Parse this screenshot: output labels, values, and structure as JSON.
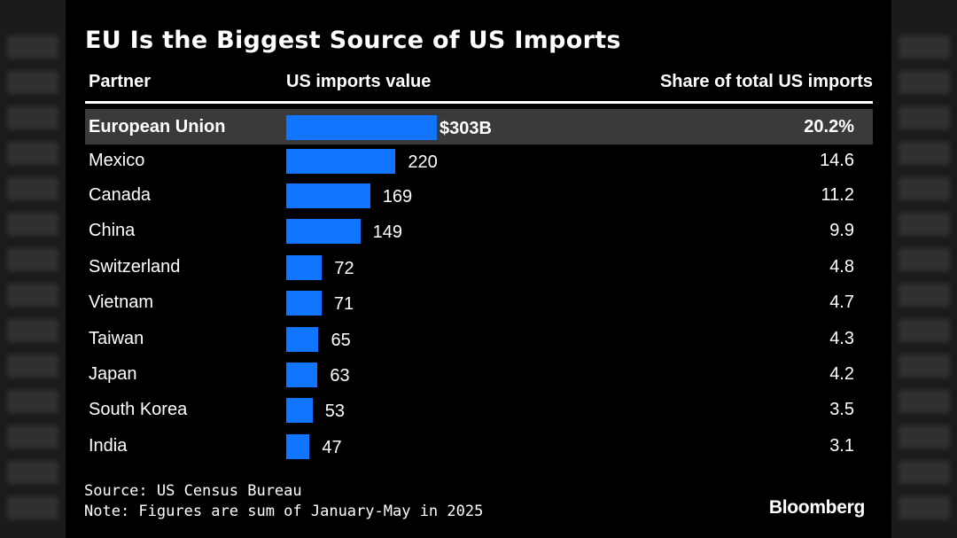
{
  "chart_data": {
    "type": "bar",
    "orientation": "horizontal",
    "title": "EU Is the Biggest Source of US Imports",
    "columns": [
      "Partner",
      "US imports value",
      "Share of total US imports"
    ],
    "categories": [
      "European Union",
      "Mexico",
      "Canada",
      "China",
      "Switzerland",
      "Vietnam",
      "Taiwan",
      "Japan",
      "South Korea",
      "India"
    ],
    "values": [
      303,
      220,
      169,
      149,
      72,
      71,
      65,
      63,
      53,
      47
    ],
    "value_labels": [
      "$303B",
      "220",
      "169",
      "149",
      "72",
      "71",
      "65",
      "63",
      "53",
      "47"
    ],
    "shares": [
      "20.2%",
      "14.6",
      "11.2",
      "9.9",
      "4.8",
      "4.7",
      "4.3",
      "4.2",
      "3.5",
      "3.1"
    ],
    "highlight_index": 0,
    "unit": "billion USD",
    "xlim": [
      0,
      303
    ],
    "bar_color": "#1175ff",
    "highlight_row_color": "#3a3a3a",
    "source": "Source: US Census Bureau",
    "note": "Note: Figures are sum of January-May in 2025",
    "brand": "Bloomberg"
  }
}
